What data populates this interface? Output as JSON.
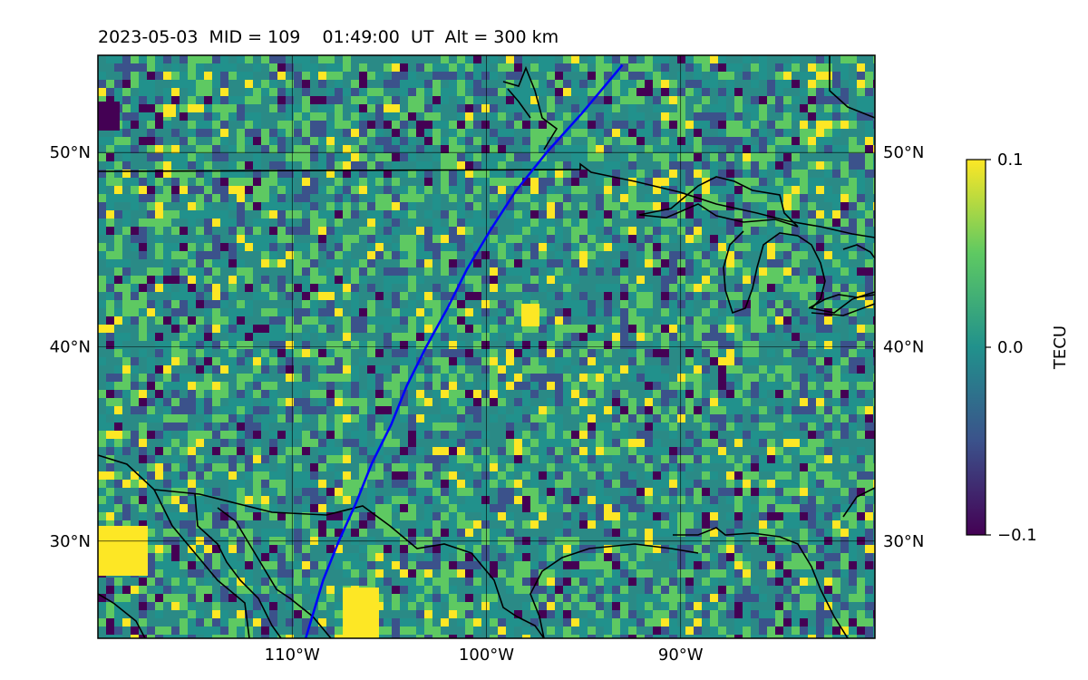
{
  "title": "2023-05-03  MID = 109    01:49:00  UT  Alt = 300 km",
  "map": {
    "lon_range": [
      -120,
      -80
    ],
    "lat_range": [
      25,
      55
    ],
    "lat_ticks": [
      {
        "value": 50,
        "label": "50°N"
      },
      {
        "value": 40,
        "label": "40°N"
      },
      {
        "value": 30,
        "label": "30°N"
      }
    ],
    "lon_ticks": [
      {
        "value": -110,
        "label": "110°W"
      },
      {
        "value": -100,
        "label": "100°W"
      },
      {
        "value": -90,
        "label": "90°W"
      }
    ],
    "track_color": "#0000ff",
    "track": [
      [
        -109.3,
        25.0
      ],
      [
        -108.4,
        28.0
      ],
      [
        -107.6,
        30.0
      ],
      [
        -106.7,
        32.0
      ],
      [
        -105.9,
        34.0
      ],
      [
        -104.9,
        36.0
      ],
      [
        -104.1,
        38.0
      ],
      [
        -103.1,
        40.0
      ],
      [
        -102.0,
        42.0
      ],
      [
        -101.0,
        44.0
      ],
      [
        -99.8,
        46.0
      ],
      [
        -98.5,
        48.0
      ],
      [
        -96.9,
        50.0
      ],
      [
        -95.1,
        52.0
      ],
      [
        -93.0,
        54.5
      ]
    ]
  },
  "colorbar": {
    "label": "TECU",
    "min": -0.1,
    "max": 0.1,
    "ticks": [
      {
        "value": 0.1,
        "label": "0.1"
      },
      {
        "value": 0.0,
        "label": "0.0"
      },
      {
        "value": -0.1,
        "label": "−0.1"
      }
    ],
    "colormap": [
      "#440154",
      "#3b528b",
      "#21918c",
      "#5ec962",
      "#fde725"
    ]
  }
}
